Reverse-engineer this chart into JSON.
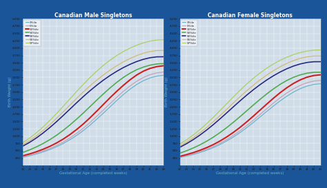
{
  "title_male": "Canadian Male Singletons",
  "title_female": "Canadian Female Singletons",
  "xlabel": "Gestational Age (completed weeks)",
  "ylabel": "Birth Weight (g)",
  "bg_color": "#1a5499",
  "plot_bg_color": "#d0dce8",
  "grid_color": "#ffffff",
  "weeks": [
    22,
    23,
    24,
    25,
    26,
    27,
    28,
    29,
    30,
    31,
    32,
    33,
    34,
    35,
    36,
    37,
    38,
    39,
    40,
    41,
    42,
    43
  ],
  "percentiles_male": {
    "3": [
      280,
      330,
      390,
      460,
      540,
      635,
      745,
      875,
      1020,
      1185,
      1370,
      1570,
      1780,
      1995,
      2210,
      2415,
      2600,
      2760,
      2890,
      2985,
      3045,
      3075
    ],
    "5": [
      295,
      350,
      415,
      490,
      575,
      680,
      795,
      935,
      1090,
      1265,
      1460,
      1670,
      1885,
      2105,
      2320,
      2525,
      2710,
      2870,
      3000,
      3095,
      3155,
      3185
    ],
    "10": [
      330,
      392,
      465,
      550,
      648,
      763,
      895,
      1048,
      1220,
      1410,
      1620,
      1845,
      2075,
      2305,
      2525,
      2730,
      2920,
      3085,
      3215,
      3310,
      3370,
      3400
    ],
    "50": [
      445,
      530,
      630,
      745,
      876,
      1025,
      1192,
      1376,
      1574,
      1782,
      2000,
      2220,
      2435,
      2640,
      2830,
      3000,
      3145,
      3265,
      3355,
      3420,
      3460,
      3475
    ],
    "90": [
      660,
      787,
      935,
      1103,
      1288,
      1487,
      1698,
      1915,
      2132,
      2343,
      2543,
      2730,
      2905,
      3064,
      3208,
      3336,
      3448,
      3543,
      3619,
      3673,
      3703,
      3706
    ],
    "95": [
      710,
      847,
      1007,
      1188,
      1387,
      1600,
      1824,
      2053,
      2282,
      2503,
      2710,
      2904,
      3083,
      3248,
      3398,
      3531,
      3648,
      3747,
      3827,
      3884,
      3917,
      3921
    ],
    "97": [
      780,
      935,
      1110,
      1310,
      1530,
      1765,
      2010,
      2263,
      2515,
      2760,
      2992,
      3208,
      3407,
      3586,
      3745,
      3883,
      4001,
      4100,
      4180,
      4241,
      4276,
      4285
    ]
  },
  "percentiles_female": {
    "3": [
      270,
      320,
      375,
      442,
      518,
      608,
      713,
      835,
      970,
      1122,
      1290,
      1470,
      1657,
      1845,
      2030,
      2205,
      2365,
      2505,
      2620,
      2707,
      2762,
      2785
    ],
    "5": [
      285,
      338,
      398,
      470,
      550,
      645,
      756,
      883,
      1026,
      1185,
      1360,
      1547,
      1742,
      1938,
      2130,
      2310,
      2473,
      2616,
      2733,
      2821,
      2877,
      2900
    ],
    "10": [
      310,
      370,
      437,
      516,
      606,
      711,
      833,
      972,
      1128,
      1300,
      1488,
      1686,
      1891,
      2096,
      2296,
      2484,
      2653,
      2800,
      2920,
      3010,
      3066,
      3090
    ],
    "50": [
      420,
      500,
      595,
      703,
      826,
      965,
      1120,
      1290,
      1473,
      1666,
      1865,
      2064,
      2258,
      2443,
      2614,
      2768,
      2900,
      3008,
      3090,
      3146,
      3175,
      3178
    ],
    "90": [
      620,
      742,
      880,
      1036,
      1207,
      1392,
      1589,
      1793,
      2000,
      2204,
      2400,
      2585,
      2758,
      2917,
      3061,
      3189,
      3299,
      3391,
      3462,
      3511,
      3536,
      3537
    ],
    "95": [
      665,
      797,
      945,
      1112,
      1295,
      1492,
      1700,
      1916,
      2133,
      2346,
      2550,
      2742,
      2921,
      3086,
      3235,
      3368,
      3483,
      3579,
      3654,
      3705,
      3731,
      3732
    ],
    "97": [
      730,
      875,
      1038,
      1222,
      1425,
      1642,
      1870,
      2104,
      2338,
      2565,
      2779,
      2977,
      3157,
      3320,
      3463,
      3587,
      3693,
      3781,
      3850,
      3900,
      3930,
      3938
    ]
  },
  "line_styles": {
    "3": {
      "color": "#6ab4cc",
      "lw": 0.9,
      "label": "3%ile"
    },
    "5": {
      "color": "#c8a0b8",
      "lw": 0.9,
      "label": "5%ile"
    },
    "10": {
      "color": "#cc2020",
      "lw": 1.5,
      "label": "10%ile"
    },
    "50": {
      "color": "#50aa50",
      "lw": 1.2,
      "label": "50%ile"
    },
    "90": {
      "color": "#282880",
      "lw": 1.2,
      "label": "90%ile"
    },
    "95": {
      "color": "#d4b870",
      "lw": 0.9,
      "label": "95%ile"
    },
    "97": {
      "color": "#aad060",
      "lw": 0.9,
      "label": "97%ile"
    }
  },
  "ylim": [
    0,
    5000
  ],
  "yticks": [
    0,
    250,
    500,
    750,
    1000,
    1250,
    1500,
    1750,
    2000,
    2250,
    2500,
    2750,
    3000,
    3250,
    3500,
    3750,
    4000,
    4250,
    4500,
    4750,
    5000
  ],
  "title_color": "#ffffff",
  "ylabel_color": "#6ab4cc",
  "xlabel_color": "#6ab4cc",
  "tick_label_color": "#1a1a1a"
}
